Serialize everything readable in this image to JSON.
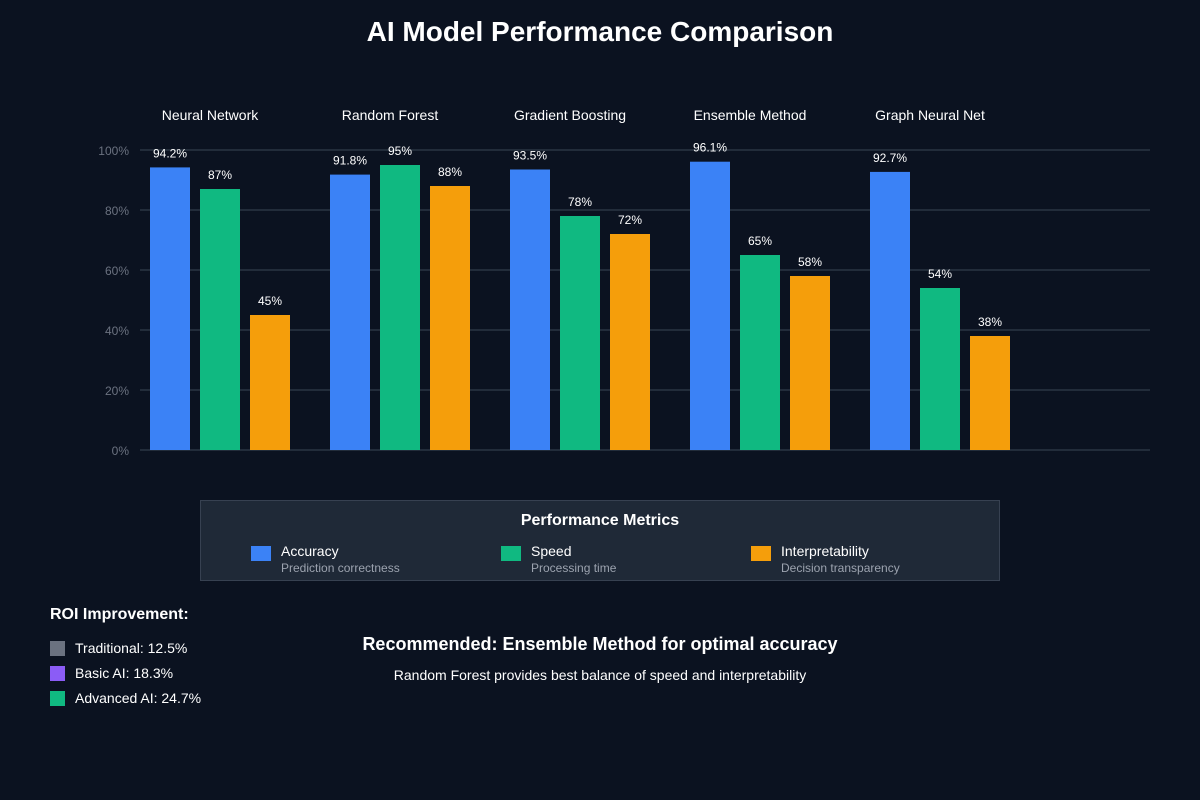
{
  "chart_data": {
    "type": "bar",
    "title": "AI Model Performance Comparison",
    "categories": [
      "Neural Network",
      "Random Forest",
      "Gradient Boosting",
      "Ensemble Method",
      "Graph Neural Net"
    ],
    "series": [
      {
        "name": "Accuracy",
        "color": "#3b82f6",
        "values": [
          94.2,
          91.8,
          93.5,
          96.1,
          92.7
        ],
        "labels": [
          "94.2%",
          "91.8%",
          "93.5%",
          "96.1%",
          "92.7%"
        ]
      },
      {
        "name": "Speed",
        "color": "#10b981",
        "values": [
          87,
          95,
          78,
          65,
          54
        ],
        "labels": [
          "87%",
          "95%",
          "78%",
          "65%",
          "54%"
        ]
      },
      {
        "name": "Interpretability",
        "color": "#f59e0b",
        "values": [
          45,
          88,
          72,
          58,
          38
        ],
        "labels": [
          "45%",
          "88%",
          "72%",
          "58%",
          "38%"
        ]
      }
    ],
    "ylim": [
      0,
      100
    ],
    "yticks": [
      "0%",
      "20%",
      "40%",
      "60%",
      "80%",
      "100%"
    ],
    "grid": true,
    "xlabel": "",
    "ylabel": ""
  },
  "legend": {
    "title": "Performance Metrics",
    "items": [
      {
        "label": "Accuracy",
        "desc": "Prediction correctness",
        "color": "#3b82f6"
      },
      {
        "label": "Speed",
        "desc": "Processing time",
        "color": "#10b981"
      },
      {
        "label": "Interpretability",
        "desc": "Decision transparency",
        "color": "#f59e0b"
      }
    ]
  },
  "roi": {
    "title": "ROI Improvement:",
    "items": [
      {
        "label": "Traditional: 12.5%",
        "color": "#6b7280"
      },
      {
        "label": "Basic AI: 18.3%",
        "color": "#8b5cf6"
      },
      {
        "label": "Advanced AI: 24.7%",
        "color": "#10b981"
      }
    ]
  },
  "recommendation": {
    "title": "Recommended: Ensemble Method for optimal accuracy",
    "subtitle": "Random Forest provides best balance of speed and interpretability"
  }
}
